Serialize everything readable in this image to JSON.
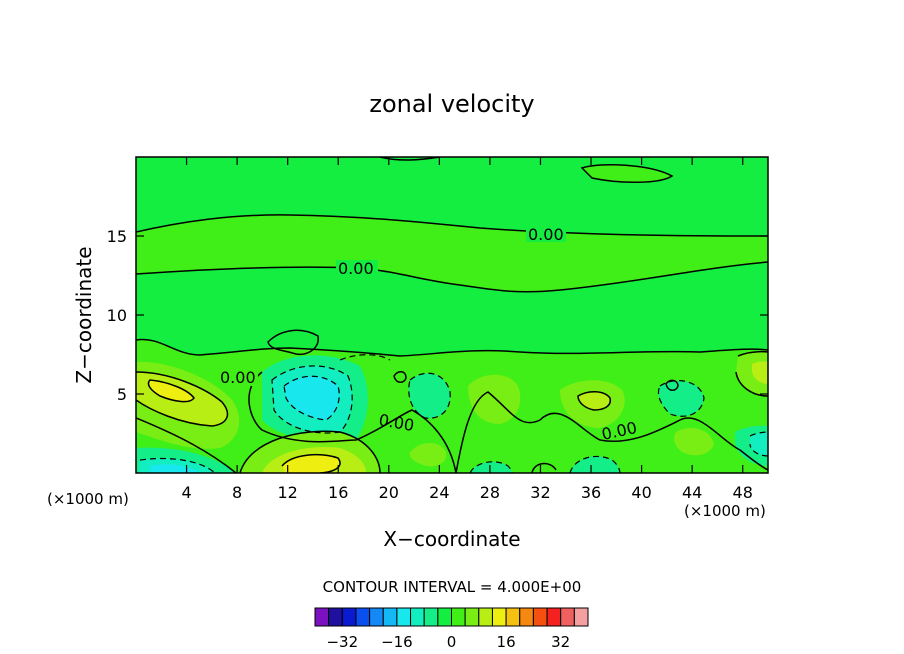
{
  "chart_data": {
    "type": "heatmap",
    "title": "zonal velocity",
    "xlabel": "X−coordinate",
    "ylabel": "Z−coordinate",
    "x_unit_left": "(×1000 m)",
    "x_unit_right": "(×1000 m)",
    "xlim": [
      0,
      50
    ],
    "ylim": [
      0,
      20
    ],
    "xticks": [
      4,
      8,
      12,
      16,
      20,
      24,
      28,
      32,
      36,
      40,
      44,
      48
    ],
    "yticks": [
      5,
      10,
      15
    ],
    "contour_interval_label": "CONTOUR INTERVAL = 4.000E+00",
    "contour_line_label": "0.00",
    "contour_line_label_count": 6,
    "colorbar": {
      "levels": [
        -36,
        -32,
        -28,
        -24,
        -20,
        -16,
        -12,
        -8,
        -4,
        0,
        4,
        8,
        12,
        16,
        20,
        24,
        28,
        32,
        36
      ],
      "colors": [
        "#7a10c0",
        "#2010a0",
        "#0a1ad0",
        "#0a50ee",
        "#1488f5",
        "#14b8f5",
        "#18e8ee",
        "#12eec0",
        "#14ee88",
        "#14ee40",
        "#40ee18",
        "#78ee14",
        "#b8ee14",
        "#eeee10",
        "#f5c010",
        "#f58810",
        "#f55010",
        "#f52020",
        "#f06060",
        "#f5a0a0"
      ],
      "tick_labels": [
        "-32",
        "-16",
        "0",
        "16",
        "32"
      ],
      "tick_values": [
        -32,
        -16,
        0,
        16,
        32
      ]
    }
  }
}
